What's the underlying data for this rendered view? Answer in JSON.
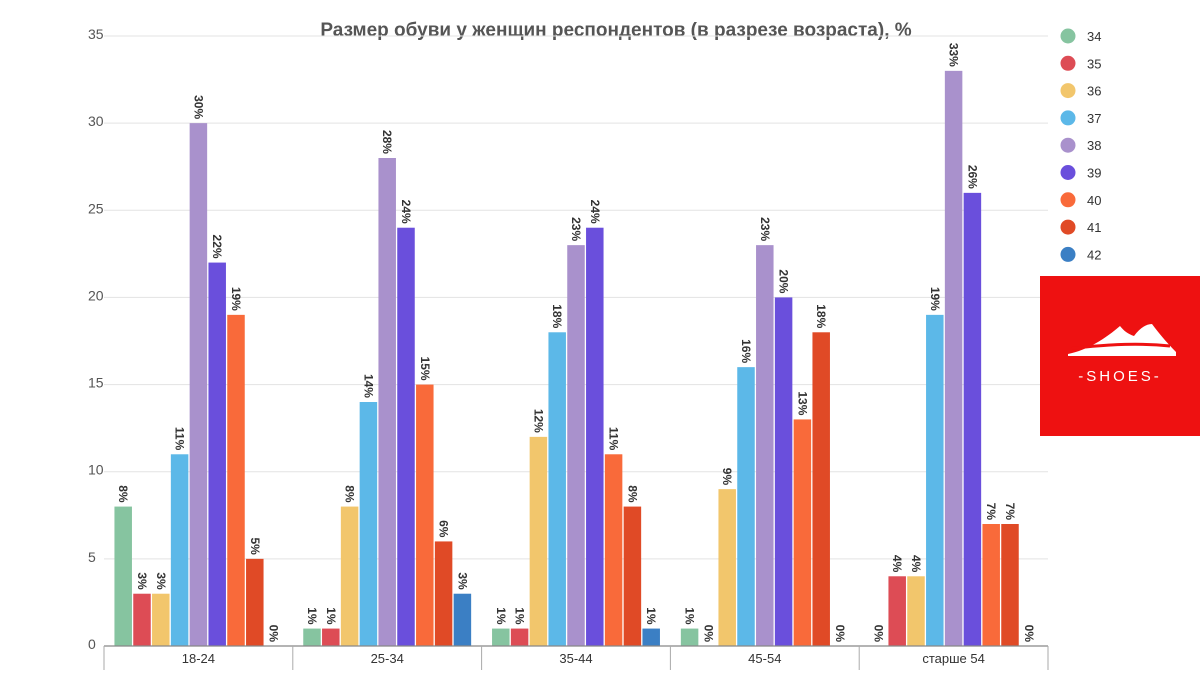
{
  "chart_data": {
    "type": "bar",
    "title": "Размер обуви у женщин респондентов (в разрезе возраста), %",
    "xlabel": "",
    "ylabel": "",
    "ylim": [
      0,
      35
    ],
    "yticks": [
      "0",
      "5",
      "10",
      "15",
      "20",
      "25",
      "30",
      "35"
    ],
    "grid": true,
    "legend_position": "right",
    "categories": [
      "18-24",
      "25-34",
      "35-44",
      "45-54",
      "старше 54"
    ],
    "series": [
      {
        "name": "34",
        "color": "#86c4a0",
        "values": [
          8,
          1,
          1,
          1,
          0
        ],
        "labels": [
          "8%",
          "1%",
          "1%",
          "1%",
          "0%"
        ]
      },
      {
        "name": "35",
        "color": "#dd4c55",
        "values": [
          3,
          1,
          1,
          0,
          4
        ],
        "labels": [
          "3%",
          "1%",
          "1%",
          "0%",
          "4%"
        ]
      },
      {
        "name": "36",
        "color": "#f2c66c",
        "values": [
          3,
          8,
          12,
          9,
          4
        ],
        "labels": [
          "3%",
          "8%",
          "12%",
          "9%",
          "4%"
        ]
      },
      {
        "name": "37",
        "color": "#5cb8e8",
        "values": [
          11,
          14,
          18,
          16,
          19
        ],
        "labels": [
          "11%",
          "14%",
          "18%",
          "16%",
          "19%"
        ]
      },
      {
        "name": "38",
        "color": "#a991cc",
        "values": [
          30,
          28,
          23,
          23,
          33
        ],
        "labels": [
          "30%",
          "28%",
          "23%",
          "23%",
          "33%"
        ]
      },
      {
        "name": "39",
        "color": "#6a4fdc",
        "values": [
          22,
          24,
          24,
          20,
          26
        ],
        "labels": [
          "22%",
          "24%",
          "24%",
          "20%",
          "26%"
        ]
      },
      {
        "name": "40",
        "color": "#f96a3a",
        "values": [
          19,
          15,
          11,
          13,
          7
        ],
        "labels": [
          "19%",
          "15%",
          "11%",
          "13%",
          "7%"
        ]
      },
      {
        "name": "41",
        "color": "#e04a26",
        "values": [
          5,
          6,
          8,
          18,
          7
        ],
        "labels": [
          "5%",
          "6%",
          "8%",
          "18%",
          "7%"
        ]
      },
      {
        "name": "42",
        "color": "#3b7fc4",
        "values": [
          0,
          3,
          1,
          0,
          0
        ],
        "labels": [
          "0%",
          "3%",
          "1%",
          "0%",
          "0%"
        ]
      }
    ]
  },
  "logo": {
    "text": "-SHOES-",
    "background": "#ee1111"
  }
}
